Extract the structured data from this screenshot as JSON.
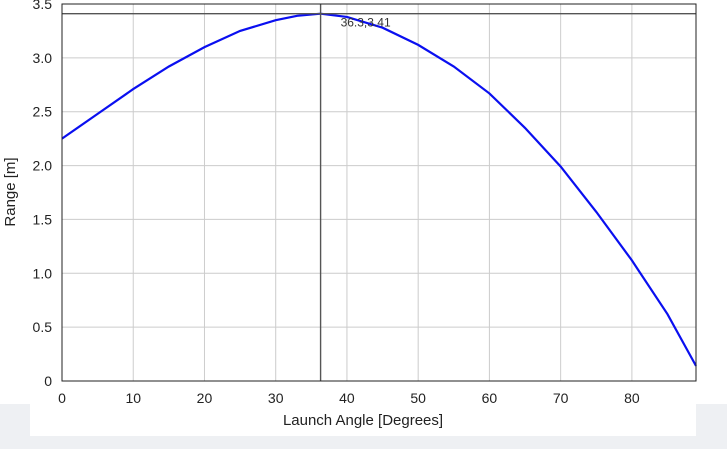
{
  "chart_data": {
    "type": "line",
    "title": "",
    "xlabel": "Launch Angle [Degrees]",
    "ylabel": "Range [m]",
    "xlim": [
      0,
      89
    ],
    "ylim": [
      0,
      3.5
    ],
    "x_ticks": [
      0,
      10,
      20,
      30,
      40,
      50,
      60,
      70,
      80
    ],
    "y_ticks": [
      0,
      0.5,
      1.0,
      1.5,
      2.0,
      2.5,
      3.0,
      3.5
    ],
    "x_tick_labels": [
      "0",
      "10",
      "20",
      "30",
      "40",
      "50",
      "60",
      "70",
      "80"
    ],
    "y_tick_labels": [
      "0",
      "0.5",
      "1.0",
      "1.5",
      "2.0",
      "2.5",
      "3.0",
      "3.5"
    ],
    "grid": true,
    "series": [
      {
        "color": "#0a0ff0",
        "x": [
          0,
          5,
          10,
          15,
          20,
          25,
          30,
          33,
          36.3,
          40,
          45,
          50,
          55,
          60,
          65,
          70,
          75,
          80,
          85,
          89
        ],
        "y": [
          2.25,
          2.48,
          2.71,
          2.92,
          3.1,
          3.25,
          3.35,
          3.39,
          3.41,
          3.38,
          3.28,
          3.12,
          2.92,
          2.67,
          2.35,
          1.99,
          1.57,
          1.12,
          0.62,
          0.14
        ]
      }
    ],
    "annotation": {
      "x": 36.3,
      "y": 3.41,
      "label": "36.3,3.41"
    }
  }
}
